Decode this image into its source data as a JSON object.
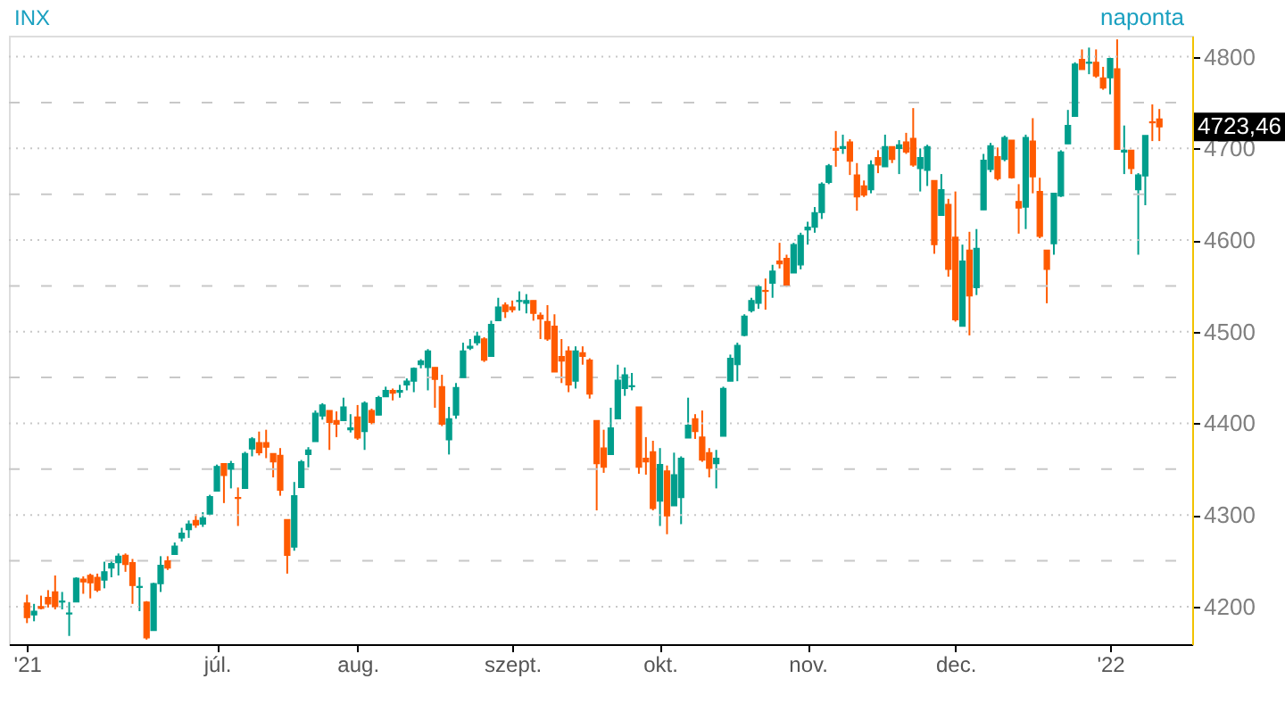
{
  "chart_data": {
    "type": "candlestick",
    "title": "INX",
    "annotations": [
      "naponta",
      "4723,46"
    ],
    "categories": [
      "'21",
      null,
      null,
      null,
      null,
      null,
      null,
      null,
      null,
      null,
      null,
      null,
      null,
      null,
      null,
      null,
      null,
      null,
      null,
      null,
      null,
      null,
      null,
      null,
      null,
      null,
      null,
      "júl.",
      null,
      null,
      null,
      null,
      null,
      null,
      null,
      null,
      null,
      null,
      null,
      null,
      null,
      null,
      null,
      null,
      null,
      null,
      null,
      "aug.",
      null,
      null,
      null,
      null,
      null,
      null,
      null,
      null,
      null,
      null,
      null,
      null,
      null,
      null,
      null,
      null,
      null,
      null,
      null,
      null,
      null,
      "szept.",
      null,
      null,
      null,
      null,
      null,
      null,
      null,
      null,
      null,
      null,
      null,
      null,
      null,
      null,
      null,
      null,
      null,
      null,
      null,
      null,
      "okt.",
      null,
      null,
      null,
      null,
      null,
      null,
      null,
      null,
      null,
      null,
      null,
      null,
      null,
      null,
      null,
      null,
      null,
      null,
      null,
      null,
      "nov.",
      null,
      null,
      null,
      null,
      null,
      null,
      null,
      null,
      null,
      null,
      null,
      null,
      null,
      null,
      null,
      null,
      null,
      null,
      null,
      null,
      "dec.",
      null,
      null,
      null,
      null,
      null,
      null,
      null,
      null,
      null,
      null,
      null,
      null,
      null,
      null,
      null,
      null,
      null,
      null,
      null,
      null,
      null,
      "'22",
      null,
      null,
      null,
      null,
      null,
      null,
      null
    ],
    "ohlc": [
      [
        4204,
        4213,
        4182,
        4188
      ],
      [
        4191,
        4203,
        4184,
        4195
      ],
      [
        4200,
        4212,
        4197,
        4198
      ],
      [
        4210,
        4218,
        4199,
        4203
      ],
      [
        4216,
        4234,
        4197,
        4200
      ],
      [
        4205,
        4216,
        4197,
        4206
      ],
      [
        4192,
        4205,
        4168,
        4193
      ],
      [
        4205,
        4232,
        4205,
        4231
      ],
      [
        4230,
        4233,
        4214,
        4227
      ],
      [
        4234,
        4236,
        4209,
        4226
      ],
      [
        4232,
        4236,
        4216,
        4218
      ],
      [
        4229,
        4249,
        4220,
        4238
      ],
      [
        4242,
        4251,
        4232,
        4247
      ],
      [
        4248,
        4258,
        4234,
        4255
      ],
      [
        4256,
        4258,
        4238,
        4246
      ],
      [
        4248,
        4252,
        4203,
        4223
      ],
      [
        4221,
        4232,
        4195,
        4222
      ],
      [
        4205,
        4206,
        4164,
        4166
      ],
      [
        4174,
        4226,
        4174,
        4225
      ],
      [
        4225,
        4255,
        4216,
        4245
      ],
      [
        4250,
        4255,
        4240,
        4242
      ],
      [
        4257,
        4270,
        4257,
        4266
      ],
      [
        4275,
        4286,
        4271,
        4280
      ],
      [
        4284,
        4294,
        4275,
        4290
      ],
      [
        4294,
        4301,
        4286,
        4289
      ],
      [
        4290,
        4303,
        4287,
        4297
      ],
      [
        4301,
        4322,
        4301,
        4320
      ],
      [
        4326,
        4355,
        4326,
        4353
      ],
      [
        4356,
        4356,
        4313,
        4343
      ],
      [
        4350,
        4359,
        4329,
        4356
      ],
      [
        4319,
        4330,
        4288,
        4318
      ],
      [
        4329,
        4369,
        4329,
        4367
      ],
      [
        4372,
        4385,
        4364,
        4383
      ],
      [
        4379,
        4391,
        4365,
        4368
      ],
      [
        4379,
        4393,
        4362,
        4374
      ],
      [
        4367,
        4367,
        4341,
        4358
      ],
      [
        4365,
        4373,
        4321,
        4327
      ],
      [
        4295,
        4295,
        4236,
        4256
      ],
      [
        4265,
        4336,
        4261,
        4321
      ],
      [
        4330,
        4360,
        4330,
        4358
      ],
      [
        4366,
        4374,
        4352,
        4371
      ],
      [
        4380,
        4414,
        4380,
        4411
      ],
      [
        4408,
        4422,
        4404,
        4420
      ],
      [
        4414,
        4414,
        4371,
        4401
      ],
      [
        4403,
        4413,
        4385,
        4399
      ],
      [
        4403,
        4428,
        4403,
        4418
      ],
      [
        4393,
        4410,
        4390,
        4395
      ],
      [
        4407,
        4420,
        4382,
        4384
      ],
      [
        4391,
        4424,
        4371,
        4422
      ],
      [
        4414,
        4416,
        4399,
        4401
      ],
      [
        4409,
        4430,
        4409,
        4428
      ],
      [
        4429,
        4440,
        4429,
        4436
      ],
      [
        4436,
        4438,
        4425,
        4433
      ],
      [
        4434,
        4442,
        4428,
        4436
      ],
      [
        4442,
        4449,
        4436,
        4446
      ],
      [
        4446,
        4461,
        4434,
        4460
      ],
      [
        4464,
        4470,
        4460,
        4468
      ],
      [
        4461,
        4481,
        4436,
        4479
      ],
      [
        4461,
        4461,
        4417,
        4448
      ],
      [
        4440,
        4453,
        4397,
        4399
      ],
      [
        4382,
        4418,
        4366,
        4405
      ],
      [
        4409,
        4444,
        4405,
        4439
      ],
      [
        4450,
        4488,
        4450,
        4479
      ],
      [
        4482,
        4492,
        4480,
        4484
      ],
      [
        4488,
        4500,
        4485,
        4495
      ],
      [
        4492,
        4494,
        4467,
        4469
      ],
      [
        4473,
        4512,
        4473,
        4508
      ],
      [
        4512,
        4537,
        4512,
        4527
      ],
      [
        4529,
        4532,
        4515,
        4522
      ],
      [
        4527,
        4534,
        4521,
        4524
      ],
      [
        4533,
        4544,
        4523,
        4534
      ],
      [
        4531,
        4541,
        4520,
        4534
      ],
      [
        4534,
        4534,
        4512,
        4520
      ],
      [
        4518,
        4521,
        4492,
        4514
      ],
      [
        4511,
        4529,
        4490,
        4492
      ],
      [
        4506,
        4519,
        4456,
        4456
      ],
      [
        4473,
        4492,
        4444,
        4468
      ],
      [
        4479,
        4484,
        4434,
        4442
      ],
      [
        4446,
        4484,
        4438,
        4479
      ],
      [
        4477,
        4484,
        4464,
        4473
      ],
      [
        4469,
        4471,
        4427,
        4432
      ],
      [
        4403,
        4403,
        4305,
        4356
      ],
      [
        4373,
        4393,
        4346,
        4352
      ],
      [
        4366,
        4417,
        4366,
        4395
      ],
      [
        4405,
        4464,
        4405,
        4447
      ],
      [
        4438,
        4461,
        4430,
        4453
      ],
      [
        4440,
        4455,
        4436,
        4441
      ],
      [
        4418,
        4418,
        4345,
        4352
      ],
      [
        4362,
        4385,
        4344,
        4358
      ],
      [
        4369,
        4381,
        4305,
        4307
      ],
      [
        4315,
        4373,
        4288,
        4355
      ],
      [
        4348,
        4354,
        4279,
        4299
      ],
      [
        4310,
        4368,
        4310,
        4344
      ],
      [
        4319,
        4364,
        4290,
        4362
      ],
      [
        4384,
        4428,
        4384,
        4398
      ],
      [
        4405,
        4410,
        4383,
        4391
      ],
      [
        4385,
        4414,
        4358,
        4360
      ],
      [
        4368,
        4373,
        4341,
        4351
      ],
      [
        4356,
        4371,
        4329,
        4362
      ],
      [
        4386,
        4440,
        4386,
        4438
      ],
      [
        4446,
        4475,
        4446,
        4471
      ],
      [
        4464,
        4488,
        4446,
        4485
      ],
      [
        4496,
        4519,
        4495,
        4517
      ],
      [
        4523,
        4537,
        4521,
        4534
      ],
      [
        4531,
        4551,
        4525,
        4549
      ],
      [
        4545,
        4558,
        4524,
        4544
      ],
      [
        4553,
        4573,
        4537,
        4566
      ],
      [
        4577,
        4597,
        4569,
        4574
      ],
      [
        4580,
        4584,
        4549,
        4551
      ],
      [
        4564,
        4597,
        4564,
        4595
      ],
      [
        4573,
        4608,
        4568,
        4605
      ],
      [
        4611,
        4620,
        4595,
        4614
      ],
      [
        4614,
        4636,
        4608,
        4630
      ],
      [
        4630,
        4663,
        4623,
        4661
      ],
      [
        4663,
        4683,
        4661,
        4681
      ],
      [
        4700,
        4719,
        4680,
        4698
      ],
      [
        4700,
        4715,
        4694,
        4702
      ],
      [
        4707,
        4710,
        4671,
        4686
      ],
      [
        4671,
        4684,
        4632,
        4647
      ],
      [
        4659,
        4665,
        4647,
        4649
      ],
      [
        4655,
        4687,
        4651,
        4682
      ],
      [
        4690,
        4698,
        4673,
        4682
      ],
      [
        4680,
        4715,
        4680,
        4702
      ],
      [
        4702,
        4702,
        4684,
        4688
      ],
      [
        4700,
        4709,
        4672,
        4704
      ],
      [
        4707,
        4717,
        4694,
        4696
      ],
      [
        4711,
        4744,
        4680,
        4682
      ],
      [
        4678,
        4700,
        4653,
        4690
      ],
      [
        4676,
        4704,
        4659,
        4702
      ],
      [
        4665,
        4665,
        4585,
        4595
      ],
      [
        4627,
        4672,
        4627,
        4655
      ],
      [
        4639,
        4645,
        4560,
        4568
      ],
      [
        4603,
        4653,
        4511,
        4513
      ],
      [
        4506,
        4595,
        4506,
        4577
      ],
      [
        4589,
        4609,
        4496,
        4539
      ],
      [
        4548,
        4612,
        4540,
        4591
      ],
      [
        4633,
        4694,
        4633,
        4687
      ],
      [
        4677,
        4706,
        4674,
        4703
      ],
      [
        4691,
        4701,
        4665,
        4667
      ],
      [
        4688,
        4714,
        4686,
        4712
      ],
      [
        4709,
        4709,
        4667,
        4668
      ],
      [
        4642,
        4661,
        4607,
        4635
      ],
      [
        4636,
        4715,
        4612,
        4712
      ],
      [
        4708,
        4733,
        4651,
        4669
      ],
      [
        4653,
        4668,
        4602,
        4604
      ],
      [
        4589,
        4589,
        4531,
        4568
      ],
      [
        4596,
        4651,
        4584,
        4651
      ],
      [
        4648,
        4698,
        4647,
        4696
      ],
      [
        4705,
        4742,
        4705,
        4725
      ],
      [
        4735,
        4794,
        4735,
        4792
      ],
      [
        4797,
        4808,
        4786,
        4786
      ],
      [
        4793,
        4810,
        4781,
        4794
      ],
      [
        4794,
        4808,
        4777,
        4779
      ],
      [
        4777,
        4789,
        4764,
        4766
      ],
      [
        4777,
        4799,
        4759,
        4798
      ],
      [
        4787,
        4819,
        4699,
        4699
      ],
      [
        4696,
        4725,
        4672,
        4698
      ],
      [
        4698,
        4698,
        4672,
        4678
      ],
      [
        4655,
        4673,
        4584,
        4671
      ],
      [
        4670,
        4714,
        4638,
        4714
      ],
      [
        4729,
        4748,
        4708,
        4728
      ],
      [
        4732,
        4743,
        4708,
        4723.46
      ]
    ],
    "colors": [
      "#ff5a00",
      "#009e8c",
      "#ff5a00",
      "#ff5a00",
      "#ff5a00",
      "#009e8c",
      "#009e8c",
      "#009e8c",
      "#ff5a00",
      "#ff5a00",
      "#ff5a00",
      "#009e8c",
      "#009e8c",
      "#009e8c",
      "#ff5a00",
      "#ff5a00",
      "#009e8c",
      "#ff5a00",
      "#009e8c",
      "#009e8c",
      "#ff5a00",
      "#009e8c",
      "#009e8c",
      "#009e8c",
      "#ff5a00",
      "#009e8c",
      "#009e8c",
      "#009e8c",
      "#ff5a00",
      "#009e8c",
      "#ff5a00",
      "#009e8c",
      "#009e8c",
      "#ff5a00",
      "#ff5a00",
      "#ff5a00",
      "#ff5a00",
      "#ff5a00",
      "#009e8c",
      "#009e8c",
      "#009e8c",
      "#009e8c",
      "#009e8c",
      "#ff5a00",
      "#ff5a00",
      "#009e8c",
      "#009e8c",
      "#ff5a00",
      "#009e8c",
      "#ff5a00",
      "#009e8c",
      "#009e8c",
      "#ff5a00",
      "#009e8c",
      "#009e8c",
      "#009e8c",
      "#009e8c",
      "#009e8c",
      "#ff5a00",
      "#ff5a00",
      "#009e8c",
      "#009e8c",
      "#009e8c",
      "#009e8c",
      "#009e8c",
      "#ff5a00",
      "#009e8c",
      "#009e8c",
      "#ff5a00",
      "#ff5a00",
      "#009e8c",
      "#009e8c",
      "#ff5a00",
      "#ff5a00",
      "#ff5a00",
      "#ff5a00",
      "#ff5a00",
      "#ff5a00",
      "#009e8c",
      "#ff5a00",
      "#ff5a00",
      "#ff5a00",
      "#ff5a00",
      "#009e8c",
      "#009e8c",
      "#009e8c",
      "#009e8c",
      "#ff5a00",
      "#ff5a00",
      "#ff5a00",
      "#009e8c",
      "#ff5a00",
      "#009e8c",
      "#009e8c",
      "#009e8c",
      "#ff5a00",
      "#ff5a00",
      "#ff5a00",
      "#009e8c",
      "#009e8c",
      "#009e8c",
      "#009e8c",
      "#009e8c",
      "#009e8c",
      "#009e8c",
      "#ff5a00",
      "#009e8c",
      "#ff5a00",
      "#ff5a00",
      "#009e8c",
      "#009e8c",
      "#009e8c",
      "#009e8c",
      "#009e8c",
      "#009e8c",
      "#ff5a00",
      "#009e8c",
      "#ff5a00",
      "#ff5a00",
      "#ff5a00",
      "#009e8c",
      "#ff5a00",
      "#009e8c",
      "#ff5a00",
      "#009e8c",
      "#ff5a00",
      "#ff5a00",
      "#009e8c",
      "#009e8c",
      "#ff5a00",
      "#009e8c",
      "#ff5a00",
      "#ff5a00",
      "#009e8c",
      "#ff5a00",
      "#009e8c",
      "#009e8c",
      "#009e8c",
      "#ff5a00",
      "#009e8c",
      "#ff5a00",
      "#ff5a00",
      "#009e8c",
      "#ff5a00",
      "#ff5a00",
      "#ff5a00",
      "#009e8c",
      "#009e8c",
      "#009e8c",
      "#009e8c",
      "#ff5a00",
      "#009e8c",
      "#ff5a00",
      "#ff5a00",
      "#009e8c",
      "#ff5a00",
      "#009e8c",
      "#ff5a00",
      "#009e8c",
      "#009e8c",
      "#ff5a00",
      "#ff5a00"
    ],
    "ylim": [
      4159,
      4823
    ],
    "yticks": [
      4200,
      {
        "value": 4250,
        "label": null
      },
      4300,
      {
        "value": 4350,
        "label": null
      },
      4400,
      {
        "value": 4450,
        "label": null
      },
      4500,
      {
        "value": 4550,
        "label": null
      },
      4600,
      {
        "value": 4650,
        "label": null
      },
      4700,
      {
        "value": 4750,
        "label": null
      },
      4800
    ],
    "grid": "y"
  }
}
